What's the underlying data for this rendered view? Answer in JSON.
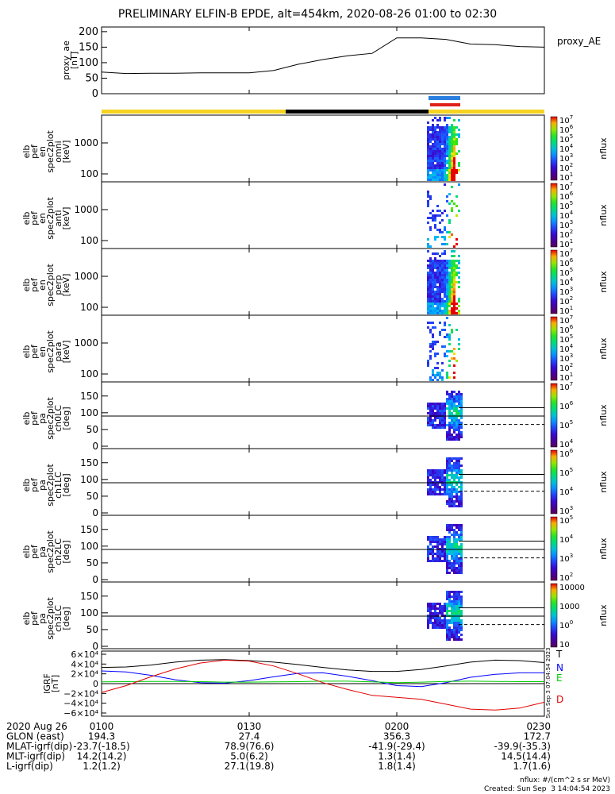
{
  "title": "PRELIMINARY ELFIN-B EPDE, alt=454km, 2020-08-26 01:00 to 02:30",
  "footer": {
    "units": "nflux: #/(cm^2 s sr MeV)",
    "created": "Created: Sun Sep  3 14:04:54 2023",
    "side_stamp": "Sun Sep  3 07:04:54 2023"
  },
  "colors": {
    "sci_bar_yellow": "#f5d320",
    "sci_bar_black": "#000000",
    "fgm_blue": "#2a7fe0",
    "fgm_red": "#e0201a",
    "T": "#000000",
    "N": "#0000ff",
    "E": "#00cc00",
    "D": "#e00000"
  },
  "chart_data": [
    {
      "type": "line",
      "panel": "proxy_ae",
      "ylabel_lines": [
        "proxy_ae",
        "[nT]"
      ],
      "legend": "proxy_AE",
      "yticks": [
        "0",
        "50",
        "100",
        "150",
        "200"
      ],
      "ylim": [
        0,
        215
      ],
      "x": [
        "01:00",
        "01:05",
        "01:10",
        "01:15",
        "01:20",
        "01:25",
        "01:30",
        "01:35",
        "01:40",
        "01:45",
        "01:50",
        "01:55",
        "02:00",
        "02:05",
        "02:10",
        "02:15",
        "02:20",
        "02:25",
        "02:30"
      ],
      "values": [
        70,
        65,
        66,
        66,
        67,
        67,
        67,
        75,
        95,
        110,
        122,
        130,
        180,
        180,
        175,
        160,
        158,
        152,
        150
      ]
    },
    {
      "type": "heatmap",
      "panel": "omni",
      "ylabel_lines": [
        "elb",
        "pef",
        "en",
        "spec2plot",
        "omni",
        "[keV]"
      ],
      "yticks": [
        "100",
        "1000"
      ],
      "yscale": "log",
      "colorbar_label": "nflux",
      "colorbar_ticks": [
        "101",
        "102",
        "103",
        "104",
        "105",
        "106",
        "107"
      ]
    },
    {
      "type": "heatmap",
      "panel": "anti",
      "ylabel_lines": [
        "elb",
        "pef",
        "en",
        "spec2plot",
        "anti",
        "[keV]"
      ],
      "yticks": [
        "100",
        "1000"
      ],
      "yscale": "log",
      "colorbar_label": "nflux",
      "colorbar_ticks": [
        "101",
        "102",
        "103",
        "104",
        "105",
        "106",
        "107"
      ]
    },
    {
      "type": "heatmap",
      "panel": "perp",
      "ylabel_lines": [
        "elb",
        "pef",
        "en",
        "spec2plot",
        "perp",
        "[keV]"
      ],
      "yticks": [
        "100",
        "1000"
      ],
      "yscale": "log",
      "colorbar_label": "nflux",
      "colorbar_ticks": [
        "101",
        "102",
        "103",
        "104",
        "105",
        "106",
        "107"
      ]
    },
    {
      "type": "heatmap",
      "panel": "para",
      "ylabel_lines": [
        "elb",
        "pef",
        "en",
        "spec2plot",
        "para",
        "[keV]"
      ],
      "yticks": [
        "100",
        "1000"
      ],
      "yscale": "log",
      "colorbar_label": "nflux",
      "colorbar_ticks": [
        "101",
        "102",
        "103",
        "104",
        "105",
        "106",
        "107"
      ]
    },
    {
      "type": "heatmap",
      "panel": "ch0LC",
      "ylabel_lines": [
        "elb",
        "pef",
        "pa",
        "spec2plot",
        "ch0LC",
        "[deg]"
      ],
      "yticks": [
        "0",
        "50",
        "100",
        "150"
      ],
      "colorbar_label": "nflux",
      "colorbar_ticks": [
        "104",
        "105",
        "106",
        "107"
      ]
    },
    {
      "type": "heatmap",
      "panel": "ch1LC",
      "ylabel_lines": [
        "elb",
        "pef",
        "pa",
        "spec2plot",
        "ch1LC",
        "[deg]"
      ],
      "yticks": [
        "0",
        "50",
        "100",
        "150"
      ],
      "colorbar_label": "nflux",
      "colorbar_ticks": [
        "103",
        "104",
        "105",
        "106"
      ]
    },
    {
      "type": "heatmap",
      "panel": "ch2LC",
      "ylabel_lines": [
        "elb",
        "pef",
        "pa",
        "spec2plot",
        "ch2LC",
        "[deg]"
      ],
      "yticks": [
        "0",
        "50",
        "100",
        "150"
      ],
      "colorbar_label": "nflux",
      "colorbar_ticks": [
        "102",
        "103",
        "104",
        "105"
      ]
    },
    {
      "type": "heatmap",
      "panel": "ch3LC",
      "ylabel_lines": [
        "elb",
        "pef",
        "pa",
        "spec2plot",
        "ch3LC",
        "[deg]"
      ],
      "yticks": [
        "0",
        "50",
        "100",
        "150"
      ],
      "colorbar_label": "nflux",
      "colorbar_ticks": [
        "10",
        "100",
        "1000",
        "10000"
      ]
    },
    {
      "type": "line",
      "panel": "igrf",
      "ylabel_lines": [
        "IGRF",
        "[nT]"
      ],
      "yticks": [
        "6×10⁴",
        "4×10⁴",
        "2×10⁴",
        "0",
        "−2×10⁴",
        "−4×10⁴",
        "−6×10⁴"
      ],
      "ylim": [
        -60000,
        60000
      ],
      "series": [
        {
          "name": "T",
          "values": [
            33000,
            34000,
            38000,
            44000,
            48000,
            49000,
            47000,
            44000,
            39000,
            33000,
            28000,
            25000,
            25000,
            29000,
            36000,
            44000,
            48000,
            47000,
            43000
          ]
        },
        {
          "name": "N",
          "values": [
            26000,
            24000,
            17000,
            8000,
            2000,
            1000,
            6000,
            14000,
            21000,
            22000,
            15000,
            6000,
            -4000,
            -6000,
            2000,
            13000,
            19000,
            22000,
            22000
          ]
        },
        {
          "name": "E",
          "values": [
            3500,
            4000,
            4500,
            4500,
            4000,
            3000,
            3000,
            3500,
            4000,
            5000,
            5000,
            3500,
            2000,
            3000,
            4500,
            5000,
            4500,
            4000,
            4000
          ]
        },
        {
          "name": "D",
          "values": [
            -18000,
            -4000,
            14000,
            30000,
            42000,
            48000,
            46000,
            36000,
            20000,
            2000,
            -12000,
            -24000,
            -28000,
            -32000,
            -42000,
            -52000,
            -54000,
            -50000,
            -38000
          ]
        }
      ]
    }
  ],
  "xaxis": {
    "ticks": [
      "0100",
      "0130",
      "0200",
      "0230"
    ],
    "rows": [
      {
        "label": "2020 Aug 26",
        "values": [
          "0100",
          "0130",
          "0200",
          "0230"
        ]
      },
      {
        "label": "GLON (east)",
        "values": [
          "194.3",
          "27.4",
          "356.3",
          "172.7"
        ]
      },
      {
        "label": "MLAT-igrf(dip)",
        "values": [
          "-23.7(-18.5)",
          "78.9(76.6)",
          "-41.9(-29.4)",
          "-39.9(-35.3)"
        ]
      },
      {
        "label": "MLT-igrf(dip)",
        "values": [
          "14.2(14.2)",
          "5.0(6.2)",
          "1.3(1.4)",
          "14.5(14.4)"
        ]
      },
      {
        "label": "L-igrf(dip)",
        "values": [
          "1.2(1.2)",
          "27.1(19.8)",
          "1.8(1.4)",
          "1.7(1.6)"
        ]
      }
    ]
  }
}
